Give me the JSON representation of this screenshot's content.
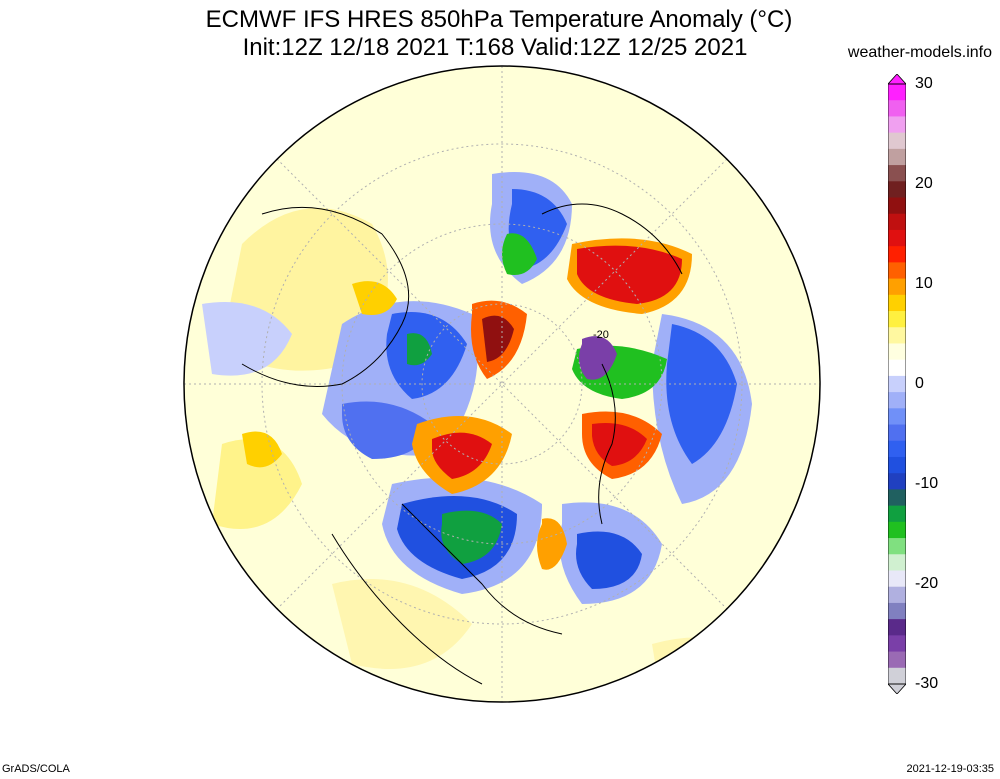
{
  "title": {
    "line1": "ECMWF IFS HRES 850hPa Temperature Anomaly (°C)",
    "line2": "Init:12Z 12/18 2021 T:168 Valid:12Z 12/25 2021"
  },
  "source": "weather-models.info",
  "footer": {
    "left": "GrADS/COLA",
    "right": "2021-12-19-03:35"
  },
  "map": {
    "projection": "polar stereographic (north)",
    "contour_label": "-20"
  },
  "colorbar": {
    "min": -30,
    "max": 30,
    "tick_labels": [
      "30",
      "20",
      "10",
      "0",
      "-10",
      "-20",
      "-30"
    ],
    "tick_values": [
      30,
      20,
      10,
      0,
      -10,
      -20,
      -30
    ],
    "colors": [
      "#d0d0d8",
      "#9a6ab4",
      "#7a3fa8",
      "#5a2a8a",
      "#8080c0",
      "#b0b0e0",
      "#e8e8f8",
      "#d0f0d0",
      "#80e080",
      "#20c020",
      "#10a040",
      "#206060",
      "#2040c0",
      "#2050e0",
      "#3060f0",
      "#5070f0",
      "#7090f8",
      "#a0b0f8",
      "#c8d0fc",
      "#ffffff",
      "#ffffe0",
      "#fff8a0",
      "#fff040",
      "#ffd000",
      "#ffa000",
      "#ff6000",
      "#ff2000",
      "#e01010",
      "#c01010",
      "#901010",
      "#702020",
      "#8a5050",
      "#c0a0a0",
      "#e0c8d0",
      "#f0a0f0",
      "#f060f0",
      "#ff20ff"
    ]
  }
}
